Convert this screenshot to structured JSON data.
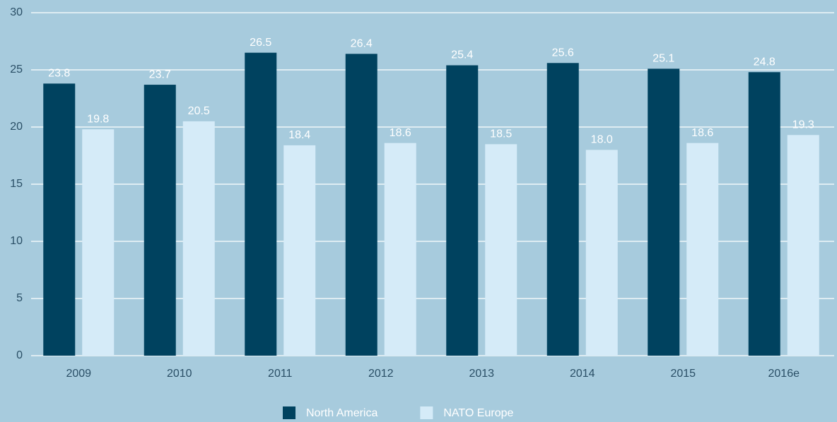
{
  "chart_data": {
    "type": "bar",
    "categories": [
      "2009",
      "2010",
      "2011",
      "2012",
      "2013",
      "2014",
      "2015",
      "2016e"
    ],
    "series": [
      {
        "name": "North America",
        "color": "#00425f",
        "values": [
          23.8,
          23.7,
          26.5,
          26.4,
          25.4,
          25.6,
          25.1,
          24.8
        ],
        "value_labels": [
          "23.8",
          "23.7",
          "26.5",
          "26.4",
          "25.4",
          "25.6",
          "25.1",
          "24.8"
        ]
      },
      {
        "name": "NATO Europe",
        "color": "#d5ebf8",
        "values": [
          19.8,
          20.5,
          18.4,
          18.6,
          18.5,
          18.0,
          18.6,
          19.3
        ],
        "value_labels": [
          "19.8",
          "20.5",
          "18.4",
          "18.6",
          "18.5",
          "18.0",
          "18.6",
          "19.3"
        ]
      }
    ],
    "ylim": [
      0,
      30
    ],
    "yticks": [
      0,
      5,
      10,
      15,
      20,
      25,
      30
    ],
    "grid": true,
    "legend": "bottom"
  }
}
